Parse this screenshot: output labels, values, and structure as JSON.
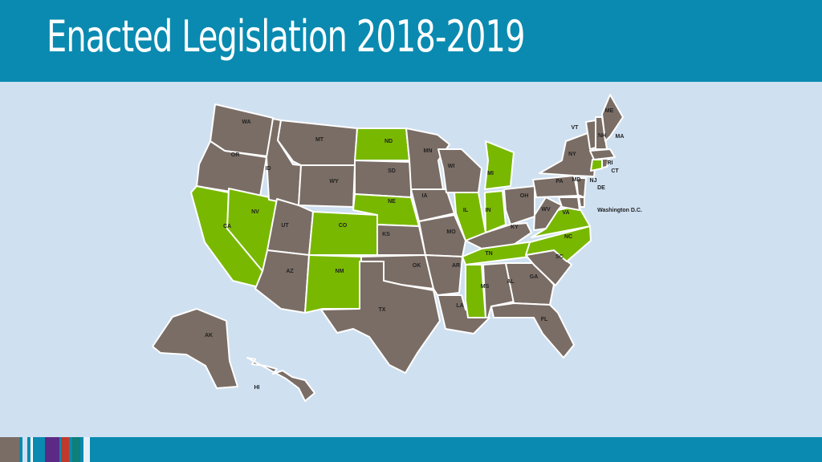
{
  "title": "Enacted Legislation 2018-2019",
  "colors": {
    "enacted": "#78b800",
    "other": "#7a6d65"
  },
  "states": [
    {
      "label": "WA",
      "enacted": false
    },
    {
      "label": "OR",
      "enacted": false
    },
    {
      "label": "CA",
      "enacted": true
    },
    {
      "label": "NV",
      "enacted": true
    },
    {
      "label": "ID",
      "enacted": false
    },
    {
      "label": "MT",
      "enacted": false
    },
    {
      "label": "WY",
      "enacted": false
    },
    {
      "label": "UT",
      "enacted": false
    },
    {
      "label": "CO",
      "enacted": true
    },
    {
      "label": "AZ",
      "enacted": false
    },
    {
      "label": "NM",
      "enacted": true
    },
    {
      "label": "ND",
      "enacted": true
    },
    {
      "label": "SD",
      "enacted": false
    },
    {
      "label": "NE",
      "enacted": true
    },
    {
      "label": "KS",
      "enacted": false
    },
    {
      "label": "OK",
      "enacted": false
    },
    {
      "label": "TX",
      "enacted": false
    },
    {
      "label": "MN",
      "enacted": false
    },
    {
      "label": "IA",
      "enacted": false
    },
    {
      "label": "MO",
      "enacted": false
    },
    {
      "label": "AR",
      "enacted": false
    },
    {
      "label": "LA",
      "enacted": false
    },
    {
      "label": "WI",
      "enacted": false
    },
    {
      "label": "IL",
      "enacted": true
    },
    {
      "label": "MI",
      "enacted": true
    },
    {
      "label": "IN",
      "enacted": true
    },
    {
      "label": "OH",
      "enacted": false
    },
    {
      "label": "KY",
      "enacted": false
    },
    {
      "label": "TN",
      "enacted": true
    },
    {
      "label": "MS",
      "enacted": true
    },
    {
      "label": "AL",
      "enacted": false
    },
    {
      "label": "GA",
      "enacted": false
    },
    {
      "label": "FL",
      "enacted": false
    },
    {
      "label": "SC",
      "enacted": false
    },
    {
      "label": "NC",
      "enacted": true
    },
    {
      "label": "VA",
      "enacted": true
    },
    {
      "label": "WV",
      "enacted": false
    },
    {
      "label": "PA",
      "enacted": false
    },
    {
      "label": "NY",
      "enacted": false
    },
    {
      "label": "VT",
      "enacted": false
    },
    {
      "label": "NH",
      "enacted": false
    },
    {
      "label": "ME",
      "enacted": false
    },
    {
      "label": "MA",
      "enacted": false
    },
    {
      "label": "CT",
      "enacted": true
    },
    {
      "label": "RI",
      "enacted": false
    },
    {
      "label": "NJ",
      "enacted": false
    },
    {
      "label": "DE",
      "enacted": false
    },
    {
      "label": "MD",
      "enacted": false
    },
    {
      "label": "AK",
      "enacted": false
    },
    {
      "label": "HI",
      "enacted": false
    }
  ],
  "dc_label": "Washington D.C."
}
